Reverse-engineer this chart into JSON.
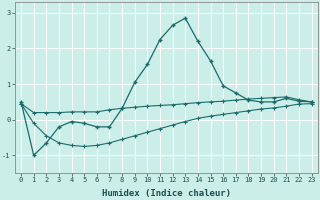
{
  "title": "",
  "xlabel": "Humidex (Indice chaleur)",
  "background_color": "#cceee8",
  "grid_color": "#ffffff",
  "line_color": "#1a6b6b",
  "xlim": [
    -0.5,
    23.5
  ],
  "ylim": [
    -1.5,
    3.3
  ],
  "yticks": [
    -1,
    0,
    1,
    2,
    3
  ],
  "xticks": [
    0,
    1,
    2,
    3,
    4,
    5,
    6,
    7,
    8,
    9,
    10,
    11,
    12,
    13,
    14,
    15,
    16,
    17,
    18,
    19,
    20,
    21,
    22,
    23
  ],
  "series": {
    "line1_x": [
      0,
      1,
      2,
      3,
      4,
      5,
      6,
      7,
      8,
      9,
      10,
      11,
      12,
      13,
      14,
      15,
      16,
      17,
      18,
      19,
      20,
      21,
      22,
      23
    ],
    "line1_y": [
      0.5,
      -1.0,
      -0.65,
      -0.2,
      -0.05,
      -0.1,
      -0.2,
      -0.2,
      0.32,
      1.05,
      1.55,
      2.25,
      2.65,
      2.85,
      2.2,
      1.65,
      0.95,
      0.75,
      0.55,
      0.5,
      0.5,
      0.6,
      0.52,
      0.5
    ],
    "line2_x": [
      0,
      1,
      2,
      3,
      4,
      5,
      6,
      7,
      8,
      9,
      10,
      11,
      12,
      13,
      14,
      15,
      16,
      17,
      18,
      19,
      20,
      21,
      22,
      23
    ],
    "line2_y": [
      0.45,
      0.2,
      0.2,
      0.2,
      0.22,
      0.22,
      0.22,
      0.28,
      0.32,
      0.35,
      0.38,
      0.4,
      0.42,
      0.45,
      0.48,
      0.5,
      0.52,
      0.55,
      0.58,
      0.6,
      0.62,
      0.64,
      0.56,
      0.5
    ],
    "line3_x": [
      0,
      1,
      2,
      3,
      4,
      5,
      6,
      7,
      8,
      9,
      10,
      11,
      12,
      13,
      14,
      15,
      16,
      17,
      18,
      19,
      20,
      21,
      22,
      23
    ],
    "line3_y": [
      0.45,
      -0.1,
      -0.45,
      -0.65,
      -0.72,
      -0.75,
      -0.72,
      -0.65,
      -0.55,
      -0.45,
      -0.35,
      -0.25,
      -0.15,
      -0.05,
      0.04,
      0.1,
      0.15,
      0.2,
      0.25,
      0.3,
      0.33,
      0.38,
      0.44,
      0.45
    ]
  }
}
